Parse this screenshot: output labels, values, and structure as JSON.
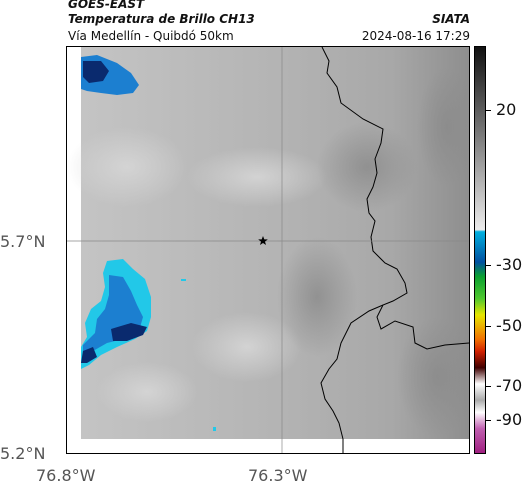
{
  "header": {
    "satellite": "GOES-EAST",
    "product": "Temperatura de Brillo CH13",
    "brand": "SIATA",
    "route": "Vía Medellín - Quibdó 50km",
    "timestamp": "2024-08-16 17:29"
  },
  "axes": {
    "lon_ticks": [
      "76.8°W",
      "76.3°W"
    ],
    "lat_ticks": [
      "5.7°N",
      "5.2°N"
    ]
  },
  "colorbar": {
    "labels": [
      "20",
      "-30",
      "-50",
      "-70",
      "-90"
    ],
    "unit": ""
  },
  "map": {
    "marker_icon": "star-icon",
    "colors": {
      "cloud_cold_dark": "#0a2a6e",
      "cloud_cold": "#1c7fd0",
      "cloud_cyan": "#22c8e8",
      "background_gray": "#b8b8b8"
    }
  }
}
